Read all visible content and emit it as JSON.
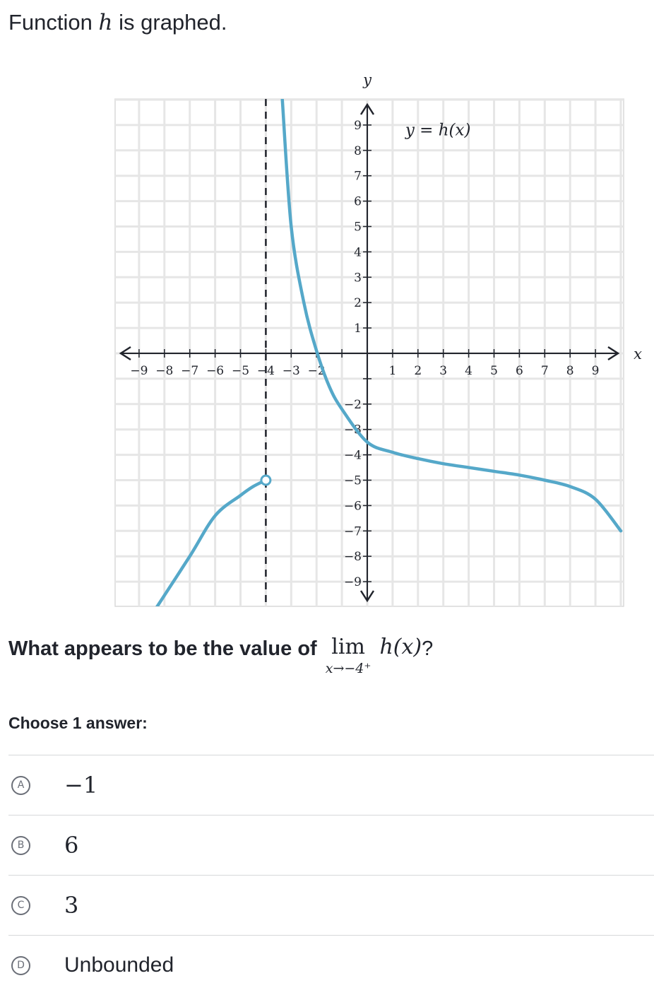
{
  "prompt": {
    "text_before": "Function",
    "variable": "h",
    "text_after": "is graphed."
  },
  "graph": {
    "x_axis_label": "x",
    "y_axis_label": "y",
    "curve_label": "y = h(x)",
    "x_ticks": [
      "−9",
      "−8",
      "−7",
      "−6",
      "−5",
      "−4",
      "−3",
      "−2",
      "1",
      "2",
      "3",
      "4",
      "5",
      "6",
      "7",
      "8",
      "9"
    ],
    "y_ticks": [
      "9",
      "8",
      "7",
      "6",
      "5",
      "4",
      "3",
      "2",
      "1",
      "−2",
      "−3",
      "−4",
      "−5",
      "−6",
      "−7",
      "−8",
      "−9"
    ],
    "curve_color": "#55a8c9",
    "asymptote_x": -4,
    "open_circle": {
      "x": -4,
      "y": -5
    }
  },
  "chart_data": {
    "type": "line",
    "title": "",
    "xlabel": "x",
    "ylabel": "y",
    "xlim": [
      -10,
      10
    ],
    "ylim": [
      -10,
      10
    ],
    "grid": true,
    "series": [
      {
        "name": "y = h(x)",
        "branch": "left",
        "x": [
          -8.3,
          -7,
          -6,
          -5,
          -4.5,
          -4
        ],
        "y": [
          -10,
          -8,
          -6.4,
          -5.6,
          -5.25,
          -5
        ],
        "end": "open-circle"
      },
      {
        "name": "y = h(x)",
        "branch": "right",
        "x": [
          -3.35,
          -3,
          -2.5,
          -2,
          -1.5,
          -1,
          0,
          1,
          2,
          3,
          4,
          5,
          6,
          7,
          8,
          9,
          10
        ],
        "y": [
          10,
          5,
          2,
          0.1,
          -1.3,
          -2.2,
          -3.5,
          -3.9,
          -4.15,
          -4.35,
          -4.5,
          -4.65,
          -4.8,
          -5,
          -5.25,
          -5.75,
          -7
        ]
      }
    ],
    "vertical_asymptote": -4
  },
  "question": {
    "text": "What appears to be the value of",
    "lim_word": "lim",
    "lim_sub": "x→−4⁺",
    "function": "h(x)",
    "qmark": "?"
  },
  "choose_label": "Choose 1 answer:",
  "choices": [
    {
      "letter": "A",
      "text": "−1"
    },
    {
      "letter": "B",
      "text": "6"
    },
    {
      "letter": "C",
      "text": "3"
    },
    {
      "letter": "D",
      "text": "Unbounded"
    }
  ]
}
